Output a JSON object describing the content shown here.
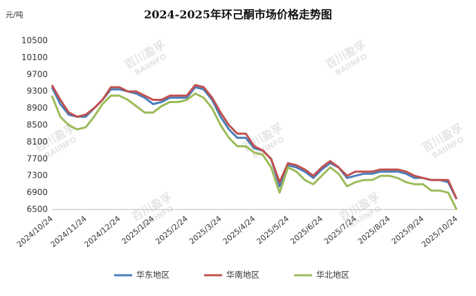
{
  "chart_data": {
    "type": "line",
    "title": "2024-2025年环己酮市场价格走势图",
    "y_unit": "元/吨",
    "watermark": [
      "百川盈孚",
      "BAIINFO"
    ],
    "categories": [
      "2024/10/24",
      null,
      null,
      null,
      "2024/11/24",
      null,
      null,
      null,
      "2024/12/24",
      null,
      null,
      null,
      "2025/1/24",
      null,
      null,
      null,
      "2025/2/24",
      null,
      null,
      null,
      "2025/3/24",
      null,
      null,
      null,
      "2025/4/24",
      null,
      null,
      null,
      "2025/5/24",
      null,
      null,
      null,
      "2025/6/24",
      null,
      null,
      null,
      "2025/7/24",
      null,
      null,
      null,
      "2025/8/24",
      null,
      null,
      null,
      "2025/9/24",
      null,
      null,
      null,
      "2025/10/24"
    ],
    "ylim": [
      6500,
      10500
    ],
    "yticks": [
      6500,
      6900,
      7300,
      7700,
      8100,
      8500,
      8900,
      9300,
      9700,
      10100,
      10500
    ],
    "grid": false,
    "legend": "bottom",
    "series": [
      {
        "name": "华东地区",
        "color": "#4a7ebb",
        "values": [
          9400,
          9000,
          8750,
          8700,
          8700,
          8900,
          9100,
          9350,
          9350,
          9300,
          9250,
          9150,
          9000,
          9050,
          9150,
          9150,
          9150,
          9400,
          9350,
          9100,
          8700,
          8400,
          8200,
          8200,
          7950,
          7900,
          7700,
          7050,
          7550,
          7500,
          7400,
          7250,
          7450,
          7600,
          7500,
          7250,
          7300,
          7350,
          7350,
          7400,
          7400,
          7400,
          7350,
          7250,
          7250,
          7200,
          7200,
          7150,
          6750
        ]
      },
      {
        "name": "华南地区",
        "color": "#c0504d",
        "values": [
          9450,
          9100,
          8800,
          8700,
          8750,
          8900,
          9100,
          9400,
          9400,
          9300,
          9300,
          9200,
          9100,
          9100,
          9200,
          9200,
          9200,
          9450,
          9400,
          9150,
          8800,
          8500,
          8300,
          8300,
          8000,
          7900,
          7700,
          7150,
          7600,
          7550,
          7450,
          7300,
          7500,
          7650,
          7500,
          7300,
          7400,
          7400,
          7400,
          7450,
          7450,
          7450,
          7400,
          7300,
          7250,
          7200,
          7200,
          7200,
          6750
        ]
      },
      {
        "name": "华北地区",
        "color": "#9bbb59",
        "values": [
          9200,
          8700,
          8500,
          8400,
          8450,
          8700,
          9000,
          9200,
          9200,
          9100,
          8950,
          8800,
          8800,
          8950,
          9050,
          9050,
          9100,
          9250,
          9150,
          8900,
          8500,
          8200,
          8000,
          8000,
          7850,
          7800,
          7500,
          6900,
          7500,
          7400,
          7200,
          7100,
          7300,
          7500,
          7350,
          7050,
          7150,
          7200,
          7200,
          7300,
          7300,
          7250,
          7150,
          7100,
          7100,
          6950,
          6950,
          6900,
          6500
        ]
      }
    ]
  }
}
